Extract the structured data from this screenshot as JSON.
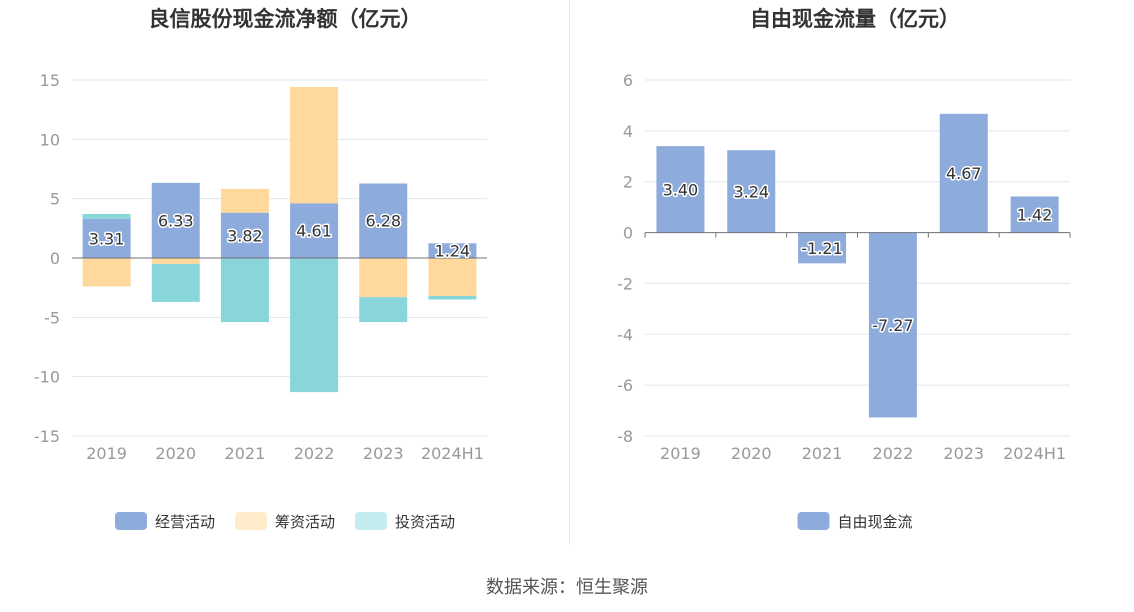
{
  "source_text": "数据来源：恒生聚源",
  "label_color": "#333333",
  "tick_color": "#999999",
  "grid_color": "#e0e6f1",
  "chart_data": [
    {
      "type": "bar",
      "stacked": true,
      "title": "良信股份现金流净额（亿元）",
      "categories": [
        "2019",
        "2020",
        "2021",
        "2022",
        "2023",
        "2024H1"
      ],
      "ylim": [
        -15,
        15
      ],
      "yticks": [
        15,
        10,
        5,
        0,
        -5,
        -10,
        -15
      ],
      "grid": true,
      "legend_position": "bottom",
      "series": [
        {
          "name": "经营活动",
          "color": "#8eacdb",
          "legend_color": "#8eacdb",
          "values": [
            3.31,
            6.33,
            3.82,
            4.61,
            6.28,
            1.24
          ],
          "labels": [
            "3.31",
            "6.33",
            "3.82",
            "4.61",
            "6.28",
            "1.24"
          ]
        },
        {
          "name": "筹资活动",
          "color": "#fed99b",
          "legend_color": "#feeccb",
          "values": [
            -2.4,
            -0.5,
            2.0,
            9.8,
            -3.3,
            -3.2
          ]
        },
        {
          "name": "投资活动",
          "color": "#88d6da",
          "legend_color": "#c2ecee",
          "values": [
            0.4,
            -3.2,
            -5.4,
            -11.3,
            -2.1,
            -0.3
          ]
        }
      ]
    },
    {
      "type": "bar",
      "title": "自由现金流量（亿元）",
      "categories": [
        "2019",
        "2020",
        "2021",
        "2022",
        "2023",
        "2024H1"
      ],
      "ylim": [
        -8,
        6
      ],
      "yticks": [
        6,
        4,
        2,
        0,
        -2,
        -4,
        -6,
        -8
      ],
      "grid": true,
      "legend_position": "bottom",
      "series": [
        {
          "name": "自由现金流",
          "color": "#8eacdb",
          "legend_color": "#8eacdb",
          "values": [
            3.4,
            3.24,
            -1.21,
            -7.27,
            4.67,
            1.42
          ],
          "labels": [
            "3.40",
            "3.24",
            "-1.21",
            "-7.27",
            "4.67",
            "1.42"
          ]
        }
      ]
    }
  ]
}
